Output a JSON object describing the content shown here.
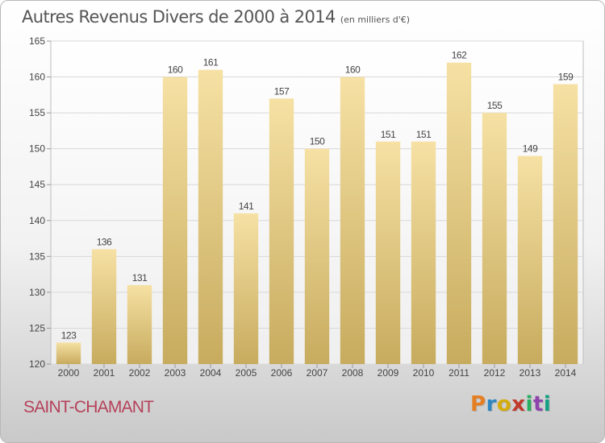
{
  "header": {
    "title": "Autres Revenus Divers de 2000 à 2014",
    "unit": "(en milliers d'€)"
  },
  "footer": {
    "commune": "SAINT-CHAMANT",
    "logo_text": "Proxiti",
    "logo_colors": [
      "#e67e22",
      "#2e86c1",
      "#d4ac0d",
      "#c0392b",
      "#27ae60",
      "#8e44ad",
      "#16a085"
    ]
  },
  "colors": {
    "bar_light": "#f6e1a4",
    "bar_dark": "#c7ab5e",
    "grid": "#d8d8d8",
    "axis_text": "#444444",
    "commune": "#b5415a"
  },
  "chart_data": {
    "type": "bar",
    "title": "Autres Revenus Divers de 2000 à 2014",
    "subtitle": "(en milliers d'€)",
    "xlabel": "",
    "ylabel": "",
    "categories": [
      "2000",
      "2001",
      "2002",
      "2003",
      "2004",
      "2005",
      "2006",
      "2007",
      "2008",
      "2009",
      "2010",
      "2011",
      "2012",
      "2013",
      "2014"
    ],
    "values": [
      123,
      136,
      131,
      160,
      161,
      141,
      157,
      150,
      160,
      151,
      151,
      162,
      155,
      149,
      159
    ],
    "ylim": [
      120,
      165
    ],
    "yticks": [
      120,
      125,
      130,
      135,
      140,
      145,
      150,
      155,
      160,
      165
    ],
    "grid": true,
    "data_labels": true
  }
}
